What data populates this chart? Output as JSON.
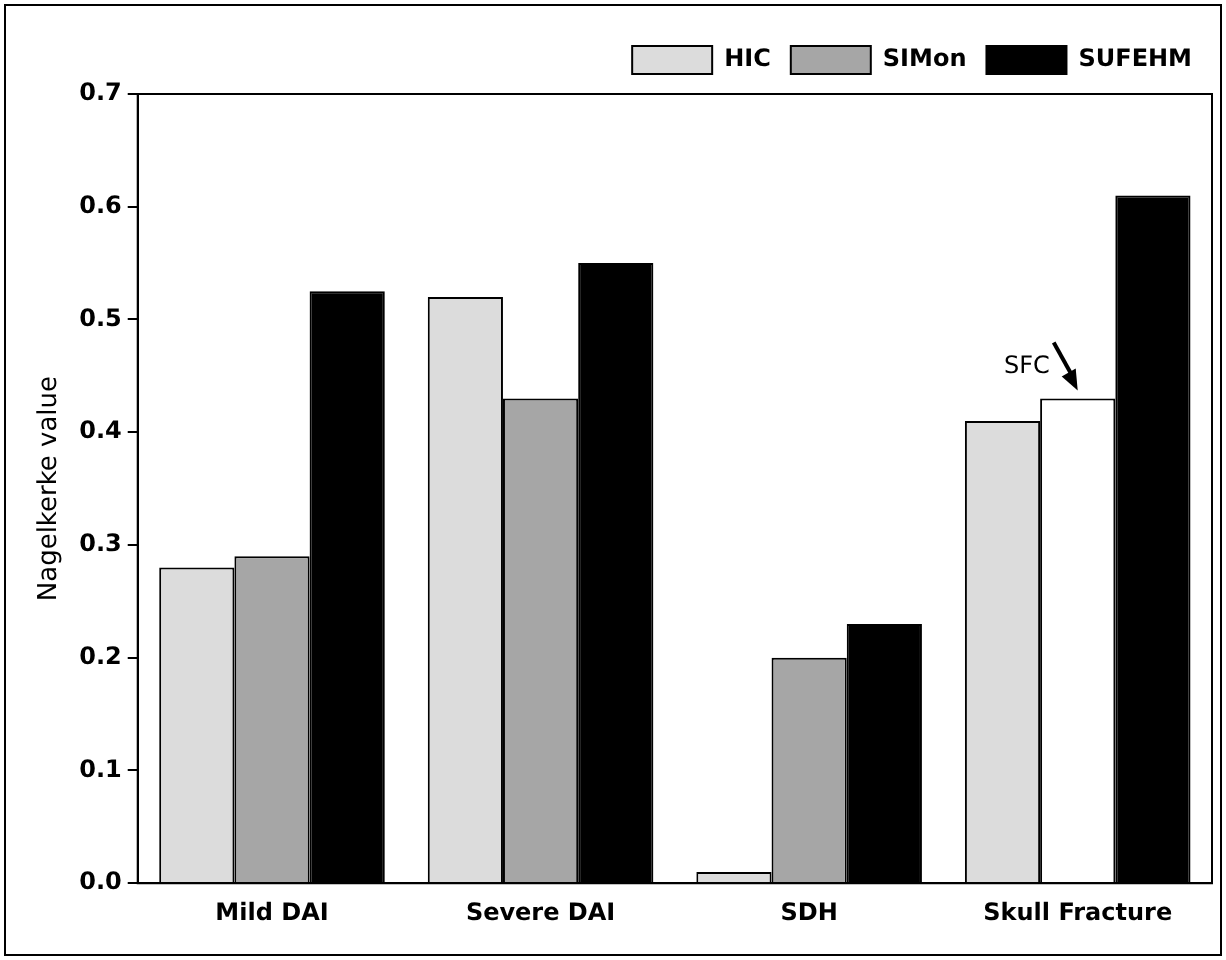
{
  "chart_data": {
    "type": "bar",
    "ylabel": "Nagelkerke value",
    "categories": [
      "Mild DAI",
      "Severe DAI",
      "SDH",
      "Skull Fracture"
    ],
    "series": [
      {
        "name": "HIC",
        "color": "#dcdcdc",
        "values": [
          0.28,
          0.52,
          0.01,
          0.41
        ]
      },
      {
        "name": "SIMon",
        "color": "#a6a6a6",
        "colors": [
          "#a6a6a6",
          "#a6a6a6",
          "#a6a6a6",
          "#ffffff"
        ],
        "values": [
          0.29,
          0.43,
          0.2,
          0.43
        ]
      },
      {
        "name": "SUFEHM",
        "color": "#000000",
        "values": [
          0.525,
          0.55,
          0.23,
          0.61
        ]
      }
    ],
    "ylim": [
      0,
      0.7
    ],
    "yticks": [
      {
        "value": 0,
        "label": "0.0"
      },
      {
        "value": 0.1,
        "label": "0.1"
      },
      {
        "value": 0.2,
        "label": "0.2"
      },
      {
        "value": 0.3,
        "label": "0.3"
      },
      {
        "value": 0.4,
        "label": "0.4"
      },
      {
        "value": 0.5,
        "label": "0.5"
      },
      {
        "value": 0.6,
        "label": "0.6"
      },
      {
        "value": 0.7,
        "label": "0.7"
      }
    ],
    "annotations": [
      {
        "text": "SFC",
        "x": "Skull Fracture",
        "y": 0.43
      }
    ],
    "grid": false,
    "legend": "top right"
  }
}
